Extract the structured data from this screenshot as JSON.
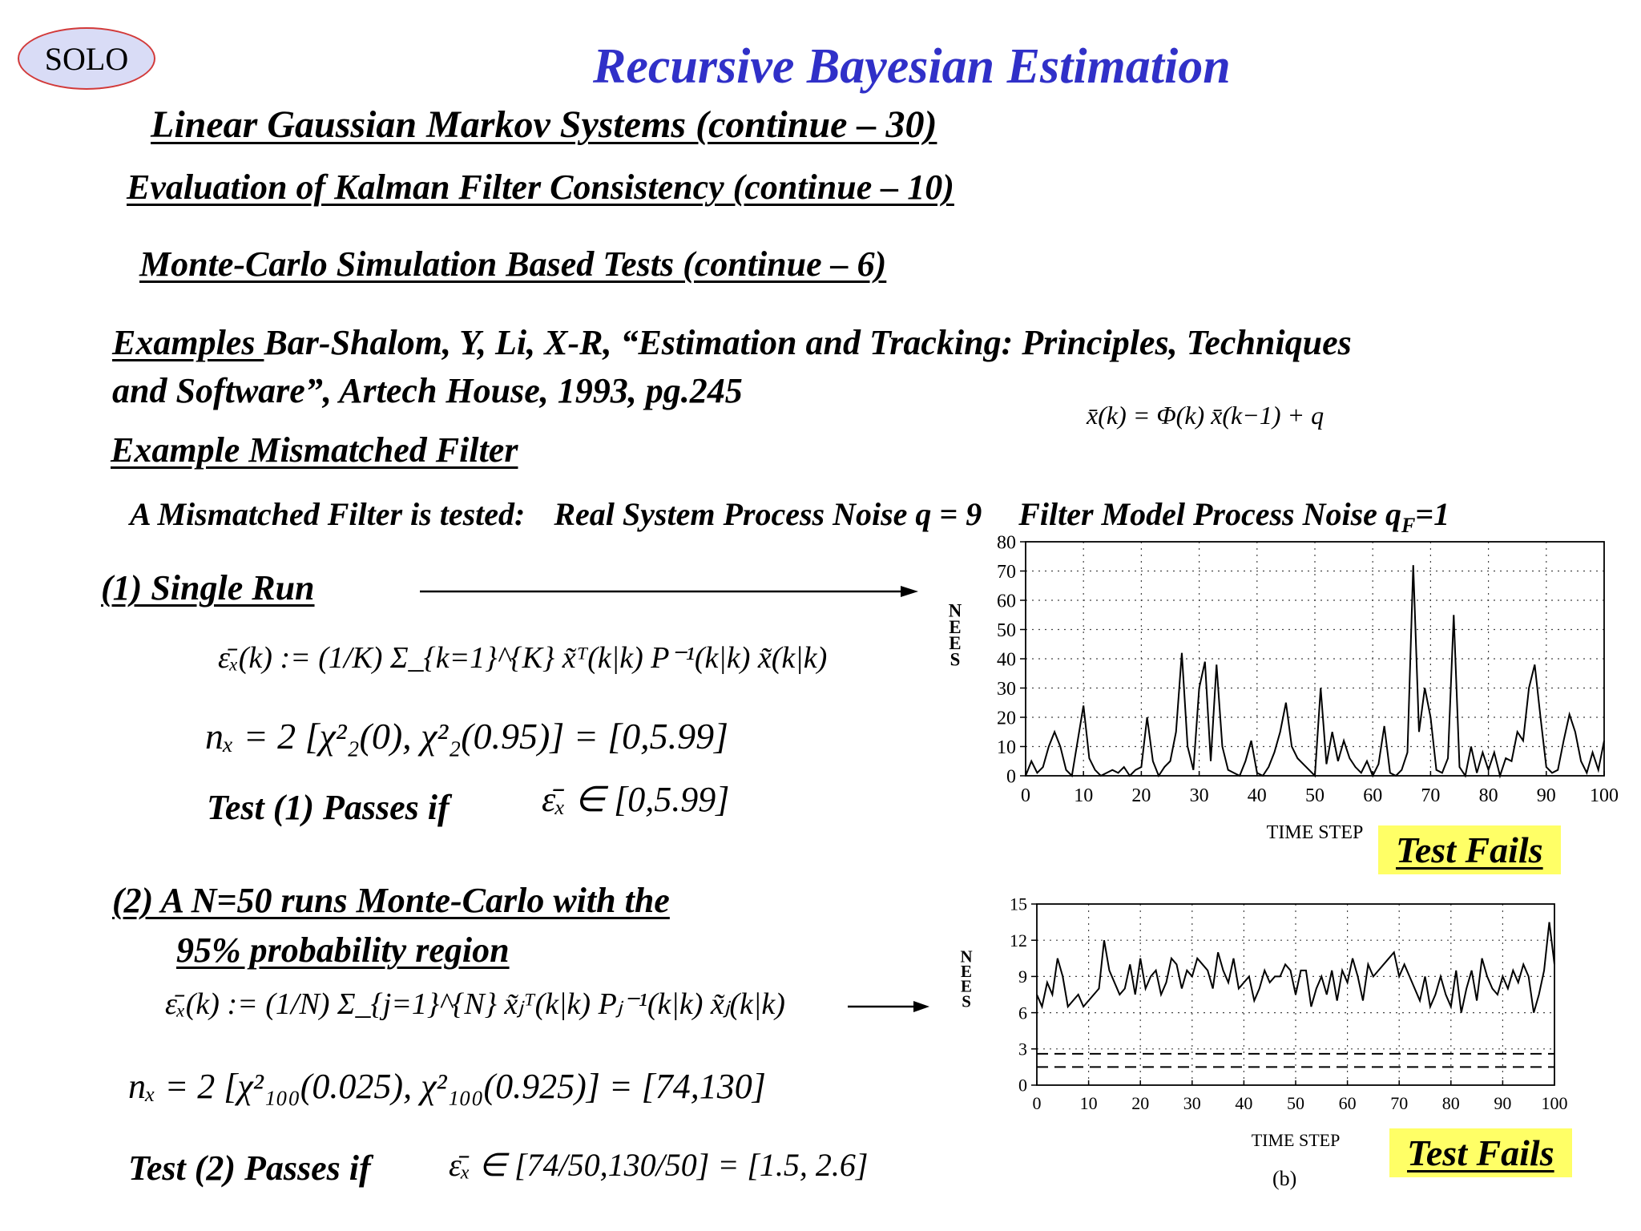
{
  "logo": "SOLO",
  "title": "Recursive Bayesian Estimation",
  "heading1": "Linear Gaussian Markov Systems (continue – 30)",
  "heading2": "Evaluation of Kalman Filter Consistency (continue – 10)",
  "heading3": "Monte-Carlo Simulation Based Tests (continue – 6)",
  "examples_label": "Examples ",
  "reference_line1": "Bar-Shalom, Y, Li, X-R, “Estimation and Tracking: Principles, Techniques",
  "reference_line2": "and Software”, Artech House, 1993, pg.245",
  "example_title": "Example Mismatched Filter",
  "model_equation": "x̄(k) = Φ(k) x̄(k−1) + q",
  "mismatch_intro": "A Mismatched Filter is tested:",
  "real_noise": "Real System Process Noise q = 9",
  "filter_noise_prefix": "Filter Model Process Noise q",
  "filter_noise_sub": "F",
  "filter_noise_suffix": "=1",
  "test1": {
    "title": "(1) Single Run",
    "formula": "ε̄ₓ(k) := (1/K) Σ_{k=1}^{K} x̃ᵀ(k|k) P⁻¹(k|k) x̃(k|k)",
    "nx_line": "nₓ = 2   [χ²₂(0), χ²₂(0.95)] = [0,5.99]",
    "pass_label": "Test (1) Passes if",
    "pass_condition": "ε̄ₓ ∈ [0,5.99]",
    "result": "Test Fails"
  },
  "test2": {
    "title_line1": "(2)  A N=50 runs Monte-Carlo with the",
    "title_line2": "95% probability region",
    "formula": "ε̄ₓ(k) := (1/N) Σ_{j=1}^{N} x̃ⱼᵀ(k|k) Pⱼ⁻¹(k|k) x̃ⱼ(k|k)",
    "nx_line": "nₓ = 2   [χ²₁₀₀(0.025), χ²₁₀₀(0.925)] = [74,130]",
    "pass_label": "Test (2) Passes if",
    "pass_condition": "ε̄ₓ ∈ [74/50,130/50] = [1.5, 2.6]",
    "result": "Test Fails",
    "panel_label": "(b)"
  },
  "chart_data": [
    {
      "type": "line",
      "xlabel": "TIME STEP",
      "ylabel": "NEES",
      "xlim": [
        0,
        100
      ],
      "ylim": [
        0,
        80
      ],
      "xticks": [
        0,
        10,
        20,
        30,
        40,
        50,
        60,
        70,
        80,
        90,
        100
      ],
      "yticks": [
        0,
        10,
        20,
        30,
        40,
        50,
        60,
        70,
        80
      ],
      "grid": "dotted",
      "series": [
        {
          "x": [
            0,
            1,
            2,
            3,
            4,
            5,
            6,
            7,
            8,
            9,
            10,
            11,
            12,
            13,
            14,
            15,
            16,
            17,
            18,
            19,
            20,
            21,
            22,
            23,
            24,
            25,
            26,
            27,
            28,
            29,
            30,
            31,
            32,
            33,
            34,
            35,
            36,
            37,
            38,
            39,
            40,
            41,
            42,
            43,
            44,
            45,
            46,
            47,
            48,
            49,
            50,
            51,
            52,
            53,
            54,
            55,
            56,
            57,
            58,
            59,
            60,
            61,
            62,
            63,
            64,
            65,
            66,
            67,
            68,
            69,
            70,
            71,
            72,
            73,
            74,
            75,
            76,
            77,
            78,
            79,
            80,
            81,
            82,
            83,
            84,
            85,
            86,
            87,
            88,
            89,
            90,
            91,
            92,
            93,
            94,
            95,
            96,
            97,
            98,
            99,
            100
          ],
          "values": [
            0,
            5,
            1,
            3,
            10,
            15,
            10,
            2,
            0,
            12,
            24,
            6,
            2,
            0,
            1,
            2,
            1,
            3,
            0,
            2,
            3,
            20,
            5,
            0,
            3,
            5,
            15,
            42,
            10,
            2,
            30,
            39,
            5,
            38,
            10,
            2,
            1,
            0,
            5,
            12,
            1,
            0,
            3,
            8,
            15,
            25,
            10,
            6,
            4,
            2,
            0,
            30,
            4,
            15,
            5,
            12,
            6,
            3,
            1,
            5,
            0,
            4,
            17,
            1,
            0,
            2,
            8,
            72,
            15,
            30,
            20,
            2,
            1,
            6,
            55,
            3,
            0,
            10,
            1,
            8,
            2,
            8,
            0,
            6,
            5,
            15,
            12,
            30,
            38,
            20,
            3,
            1,
            2,
            12,
            21,
            15,
            5,
            1,
            8,
            2,
            12
          ]
        }
      ]
    },
    {
      "type": "line",
      "xlabel": "TIME STEP",
      "ylabel": "NEES",
      "xlim": [
        0,
        100
      ],
      "ylim": [
        0,
        15
      ],
      "xticks": [
        0,
        10,
        20,
        30,
        40,
        50,
        60,
        70,
        80,
        90,
        100
      ],
      "yticks": [
        0,
        3,
        6,
        9,
        12,
        15
      ],
      "grid": "dotted",
      "series": [
        {
          "x": [
            0,
            1,
            2,
            3,
            4,
            5,
            6,
            7,
            8,
            9,
            10,
            11,
            12,
            13,
            14,
            15,
            16,
            17,
            18,
            19,
            20,
            21,
            22,
            23,
            24,
            25,
            26,
            27,
            28,
            29,
            30,
            31,
            32,
            33,
            34,
            35,
            36,
            37,
            38,
            39,
            40,
            41,
            42,
            43,
            44,
            45,
            46,
            47,
            48,
            49,
            50,
            51,
            52,
            53,
            54,
            55,
            56,
            57,
            58,
            59,
            60,
            61,
            62,
            63,
            64,
            65,
            66,
            67,
            68,
            69,
            70,
            71,
            72,
            73,
            74,
            75,
            76,
            77,
            78,
            79,
            80,
            81,
            82,
            83,
            84,
            85,
            86,
            87,
            88,
            89,
            90,
            91,
            92,
            93,
            94,
            95,
            96,
            97,
            98,
            99,
            100
          ],
          "values": [
            7.5,
            6.5,
            8.5,
            7.5,
            10.5,
            9,
            6.5,
            7,
            7.5,
            6.5,
            7,
            7.5,
            8,
            12,
            9.5,
            8.5,
            7.5,
            8,
            10,
            7.5,
            10.5,
            8,
            9,
            9.5,
            7.5,
            8.5,
            10.5,
            10,
            8,
            9.5,
            9,
            10.5,
            10,
            9.5,
            8,
            11,
            9.5,
            8.5,
            10.5,
            8,
            8.5,
            9,
            7,
            8,
            9.5,
            8.5,
            9,
            9,
            10,
            9.5,
            7.5,
            9.5,
            9.5,
            6.5,
            8,
            9,
            7.5,
            9.5,
            7,
            9.5,
            8.5,
            10.5,
            9,
            7,
            10,
            9,
            9.5,
            10,
            10.5,
            11,
            9,
            10,
            9,
            8,
            7,
            9,
            6.5,
            7.5,
            9,
            7.5,
            6.5,
            9.5,
            6,
            8,
            9.5,
            7,
            10.5,
            9,
            8,
            7.5,
            9,
            8,
            9.5,
            8.5,
            10,
            9,
            6,
            7.5,
            9.5,
            13.5,
            10
          ]
        },
        {
          "name": "",
          "values": [
            2.6,
            2.6
          ]
        },
        {
          "name": "",
          "values": [
            1.5,
            1.5
          ]
        }
      ]
    }
  ]
}
